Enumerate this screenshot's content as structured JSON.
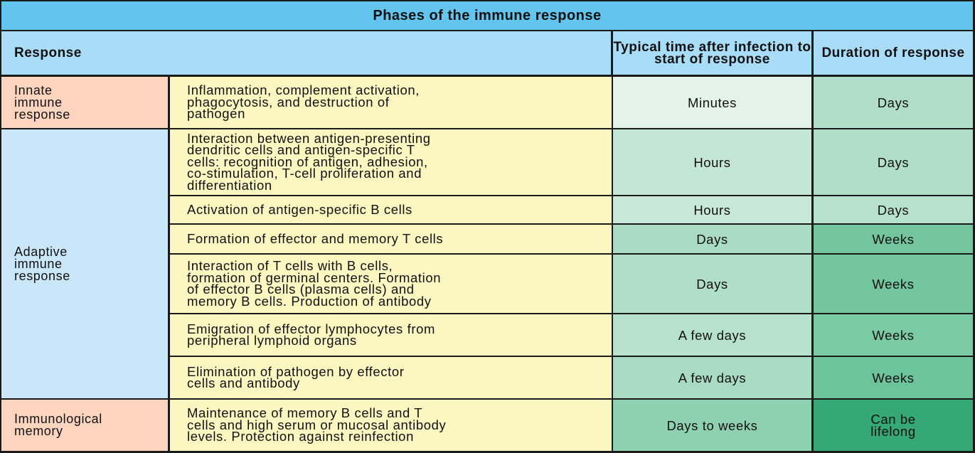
{
  "title": "Phases of the immune response",
  "headers": {
    "response": "Response",
    "time": "Typical time after infection to start of response",
    "duration": "Duration of response"
  },
  "groups": {
    "innate": "Innate\nimmune\nresponse",
    "adaptive": "Adaptive\nimmune\nresponse",
    "memory": "Immunological\nmemory"
  },
  "rows": [
    {
      "event": "Inflammation, complement activation,\nphagocytosis, and destruction of\npathogen",
      "time": "Minutes",
      "duration": "Days"
    },
    {
      "event": "Interaction between antigen-presenting\ndendritic cells and antigen-specific T\ncells: recognition of antigen, adhesion,\nco-stimulation, T-cell proliferation and\ndifferentiation",
      "time": "Hours",
      "duration": "Days"
    },
    {
      "event": "Activation of antigen-specific B cells",
      "time": "Hours",
      "duration": "Days"
    },
    {
      "event": "Formation of effector and memory T cells",
      "time": "Days",
      "duration": "Weeks"
    },
    {
      "event": "Interaction of T cells with B cells,\nformation of germinal centers. Formation\nof effector B cells (plasma cells) and\nmemory B cells. Production of antibody",
      "time": "Days",
      "duration": "Weeks"
    },
    {
      "event": "Emigration of effector lymphocytes from\nperipheral lymphoid organs",
      "time": "A few days",
      "duration": "Weeks"
    },
    {
      "event": "Elimination of pathogen by effector\ncells and antibody",
      "time": "A few days",
      "duration": "Weeks"
    },
    {
      "event": "Maintenance of memory B cells and T\ncells and high serum or mucosal antibody\nlevels. Protection against reinfection",
      "time": "Days to weeks",
      "duration": "Can be\nlifelong"
    }
  ],
  "colors": {
    "title_bg": "#63c4ee",
    "header_bg": "#a9dcf7",
    "innate_memory_bg": "#fdd5bf",
    "adaptive_bg": "#c9e7f9",
    "event_bg": "#fcf6c1",
    "time_shades": [
      "#e4f2ec",
      "#c4e6d6",
      "#c8e8d9",
      "#aadcc4",
      "#b0dec8",
      "#b6e1cc",
      "#a9dbc3",
      "#8ed1b1"
    ],
    "duration_shades": [
      "#b0dec8",
      "#b0dec8",
      "#b6e1cc",
      "#72c59c",
      "#74c69e",
      "#7aca a3",
      "#6dc39a",
      "#35a876"
    ]
  }
}
